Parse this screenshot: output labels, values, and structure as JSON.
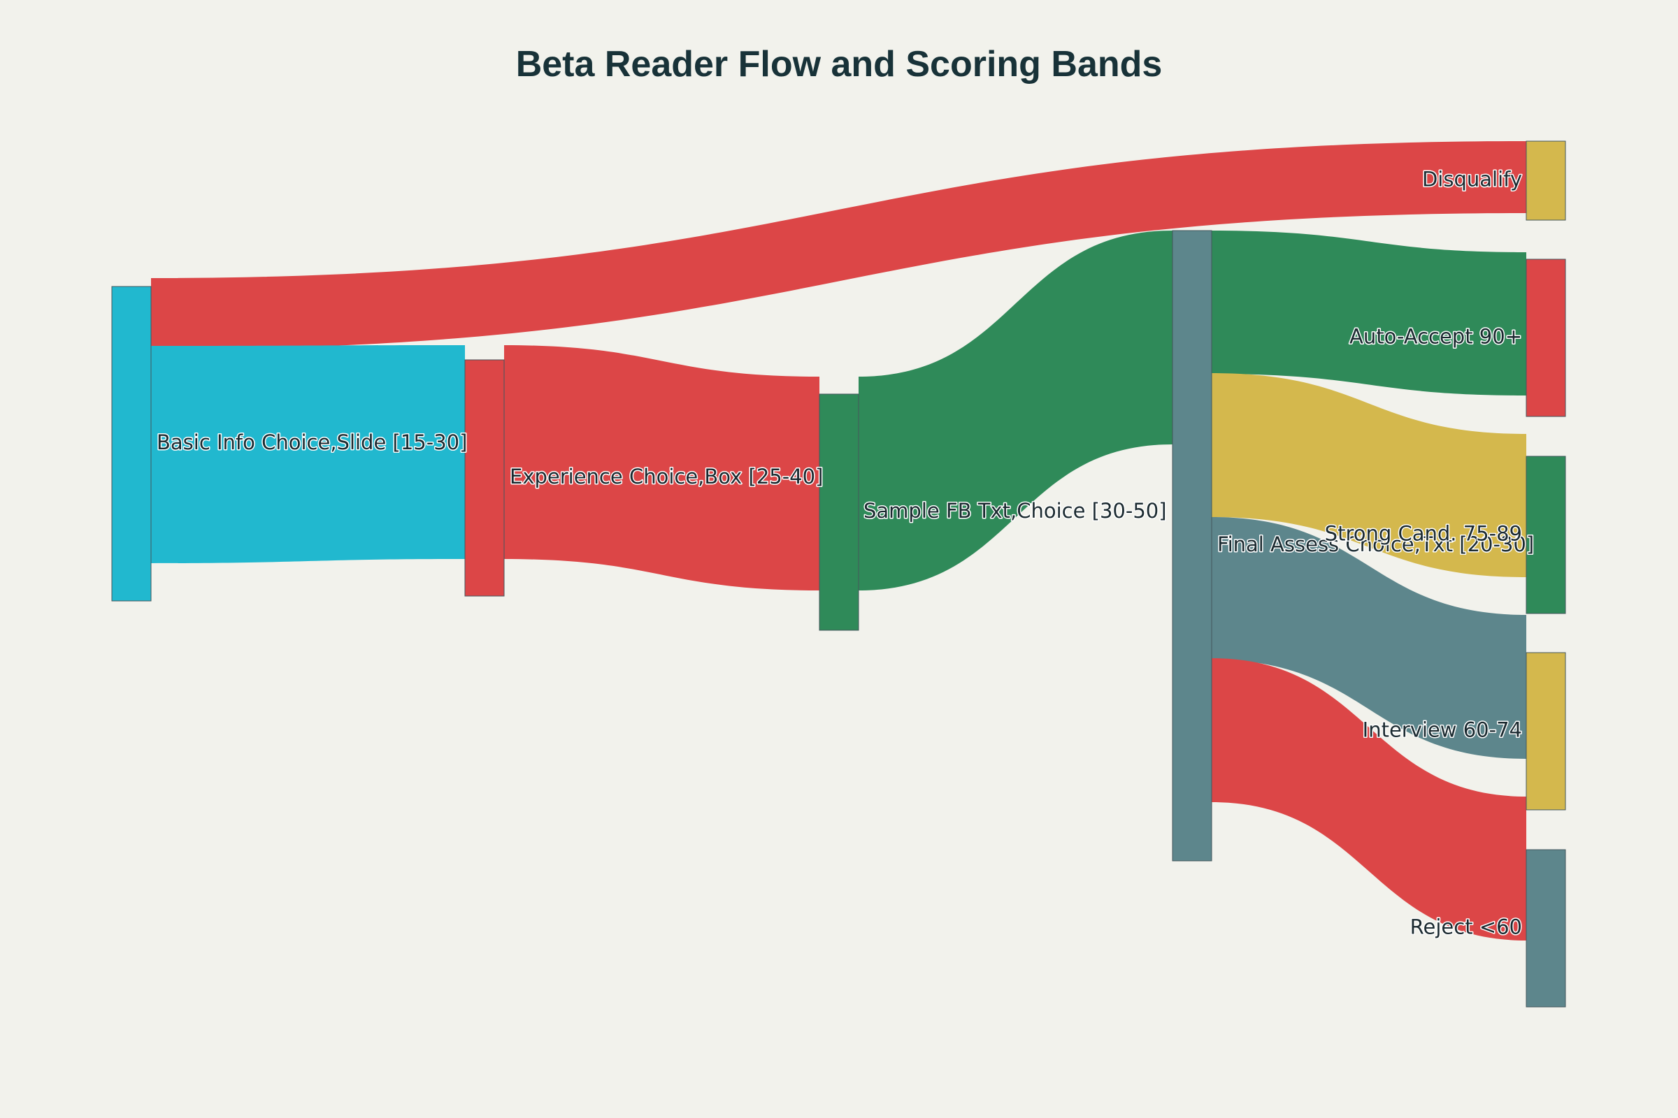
{
  "title": "Beta Reader Flow and Scoring Bands",
  "colors": {
    "background": "#f2f2ec",
    "teal": "#21b8cf",
    "red": "#dc4647",
    "green": "#2f8a59",
    "slate": "#5d868c",
    "gold": "#d4b84d"
  },
  "nodes": [
    {
      "id": "basic",
      "label": "Basic Info Choice,Slide [15-30]",
      "color": "#21b8cf"
    },
    {
      "id": "exp",
      "label": "Experience Choice,Box [25-40]",
      "color": "#dc4647"
    },
    {
      "id": "sample",
      "label": "Sample FB Txt,Choice [30-50]",
      "color": "#2f8a59"
    },
    {
      "id": "final",
      "label": "Final Assess Choice,Txt [20-30]",
      "color": "#5d868c"
    },
    {
      "id": "disq",
      "label": "Disqualify",
      "color": "#d4b84d"
    },
    {
      "id": "accept",
      "label": "Auto-Accept 90+",
      "color": "#dc4647"
    },
    {
      "id": "strong",
      "label": "Strong Cand. 75-89",
      "color": "#2f8a59"
    },
    {
      "id": "interview",
      "label": "Interview 60-74",
      "color": "#d4b84d"
    },
    {
      "id": "reject",
      "label": "Reject <60",
      "color": "#5d868c"
    }
  ],
  "links": [
    {
      "source": "basic",
      "target": "disq",
      "value": 10,
      "color": "#dc4647"
    },
    {
      "source": "basic",
      "target": "exp",
      "value": 30,
      "color": "#21b8cf"
    },
    {
      "source": "exp",
      "target": "sample",
      "value": 30,
      "color": "#dc4647"
    },
    {
      "source": "sample",
      "target": "final",
      "value": 30,
      "color": "#2f8a59"
    },
    {
      "source": "final",
      "target": "accept",
      "value": 20,
      "color": "#2f8a59"
    },
    {
      "source": "final",
      "target": "strong",
      "value": 20,
      "color": "#d4b84d"
    },
    {
      "source": "final",
      "target": "interview",
      "value": 20,
      "color": "#5d868c"
    },
    {
      "source": "final",
      "target": "reject",
      "value": 20,
      "color": "#dc4647"
    }
  ]
}
